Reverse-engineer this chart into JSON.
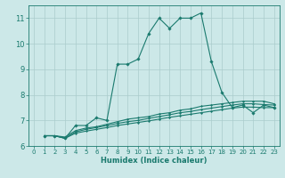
{
  "xlabel": "Humidex (Indice chaleur)",
  "xlim": [
    -0.5,
    23.5
  ],
  "ylim": [
    6,
    11.5
  ],
  "yticks": [
    6,
    7,
    8,
    9,
    10,
    11
  ],
  "xticks": [
    0,
    1,
    2,
    3,
    4,
    5,
    6,
    7,
    8,
    9,
    10,
    11,
    12,
    13,
    14,
    15,
    16,
    17,
    18,
    19,
    20,
    21,
    22,
    23
  ],
  "bg_color": "#cce8e8",
  "grid_color": "#aacccc",
  "line_color": "#1a7a6e",
  "series": [
    [
      6.4,
      6.4,
      6.3,
      6.8,
      6.8,
      7.1,
      7.0,
      9.2,
      9.2,
      9.4,
      10.4,
      11.0,
      10.6,
      11.0,
      11.0,
      11.2,
      9.3,
      8.1,
      7.5,
      7.6,
      7.3,
      7.6,
      7.5
    ],
    [
      6.4,
      6.4,
      6.35,
      6.6,
      6.7,
      6.75,
      6.85,
      6.95,
      7.05,
      7.1,
      7.15,
      7.25,
      7.3,
      7.4,
      7.45,
      7.55,
      7.6,
      7.65,
      7.7,
      7.75,
      7.75,
      7.75,
      7.65
    ],
    [
      6.4,
      6.4,
      6.3,
      6.55,
      6.65,
      6.72,
      6.8,
      6.88,
      6.95,
      7.0,
      7.08,
      7.15,
      7.22,
      7.3,
      7.35,
      7.42,
      7.48,
      7.54,
      7.6,
      7.65,
      7.65,
      7.62,
      7.6
    ],
    [
      6.4,
      6.4,
      6.3,
      6.5,
      6.58,
      6.65,
      6.72,
      6.8,
      6.86,
      6.92,
      6.98,
      7.05,
      7.12,
      7.18,
      7.24,
      7.3,
      7.36,
      7.42,
      7.48,
      7.52,
      7.52,
      7.5,
      7.5
    ]
  ]
}
